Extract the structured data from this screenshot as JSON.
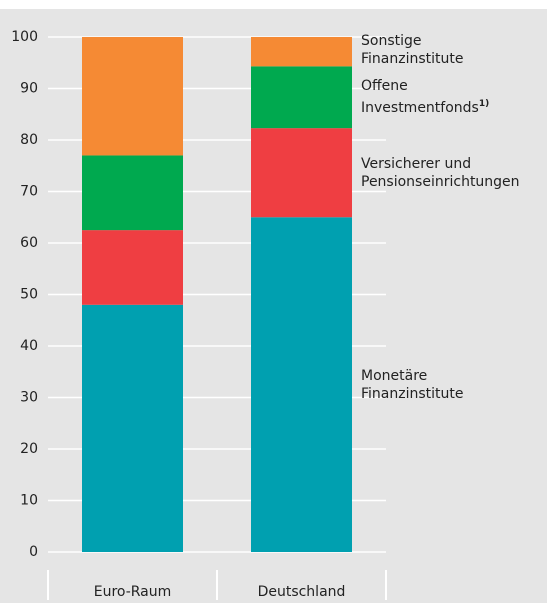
{
  "chart_data": {
    "type": "stacked_bar",
    "categories": [
      "Euro-Raum",
      "Deutschland"
    ],
    "series": [
      {
        "name": "Monetäre\nFinanzinstitute",
        "color": "#00a0b0",
        "values": [
          48,
          65
        ]
      },
      {
        "name": "Versicherer und\nPensionseinrichtungen",
        "color": "#ef3e42",
        "values": [
          14.5,
          17.3
        ]
      },
      {
        "name": "Offene\nInvestmentfonds",
        "footnote": "1)",
        "color": "#00a94f",
        "values": [
          14.5,
          12
        ]
      },
      {
        "name": "Sonstige\nFinanzinstitute",
        "color": "#f58a34",
        "values": [
          23,
          5.7
        ]
      }
    ],
    "ylim": [
      0,
      100
    ],
    "yticks": [
      0,
      10,
      20,
      30,
      40,
      50,
      60,
      70,
      80,
      90,
      100
    ],
    "grid": true
  }
}
